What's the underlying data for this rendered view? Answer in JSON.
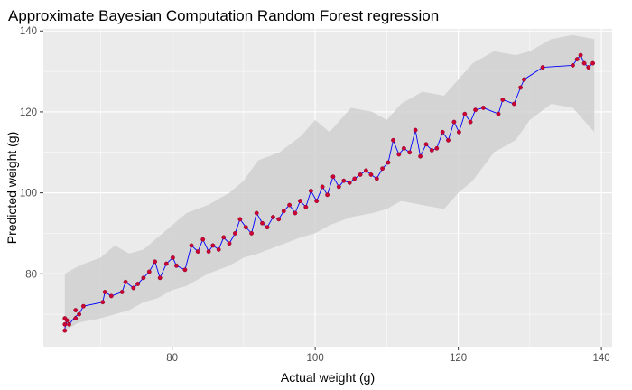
{
  "chart_data": {
    "type": "scatter",
    "title": "Approximate Bayesian Computation Random Forest regression",
    "xlabel": "Actual weight (g)",
    "ylabel": "Predicted weight (g)",
    "xlim": [
      62,
      141.5
    ],
    "ylim": [
      62,
      140.5
    ],
    "x_ticks": [
      80,
      100,
      120,
      140
    ],
    "y_ticks": [
      80,
      100,
      120,
      140
    ],
    "grid": true,
    "legend": "none",
    "series": [
      {
        "type": "ribbon",
        "color": "#cccccc",
        "x": [
          65,
          67,
          70,
          72,
          74,
          76,
          78,
          80,
          82,
          85,
          88,
          90,
          92,
          95,
          98,
          100,
          102,
          105,
          108,
          110,
          112,
          115,
          118,
          120,
          122,
          125,
          128,
          130,
          133,
          136,
          139
        ],
        "lower": [
          66,
          68,
          69,
          70,
          71,
          73,
          74,
          76,
          77,
          80,
          82,
          84,
          85,
          87,
          89,
          90,
          92,
          94,
          95,
          96,
          98,
          97,
          96,
          100,
          103,
          110,
          113,
          118,
          122,
          121,
          115
        ],
        "upper": [
          80,
          82,
          84,
          87,
          85,
          86,
          89,
          92,
          95,
          97,
          100,
          103,
          108,
          110,
          114,
          118,
          115,
          121,
          120,
          118,
          122,
          125,
          124,
          128,
          132,
          135,
          134,
          135,
          138,
          139,
          138
        ]
      },
      {
        "type": "line",
        "color": "#0000ff",
        "x": [
          65,
          65.3,
          65.6,
          66.5,
          67,
          67.6,
          70.3,
          70.6,
          71.5,
          73,
          73.5,
          74.6,
          75.2,
          76,
          76.8,
          77.6,
          78.3,
          79.2,
          80.1,
          80.6,
          81.8,
          82.7,
          83.6,
          84.3,
          85.1,
          85.7,
          86.5,
          87.2,
          88,
          88.8,
          89.5,
          90.3,
          91.1,
          91.8,
          92.6,
          93.3,
          94.1,
          94.9,
          95.6,
          96.4,
          97.2,
          97.9,
          98.7,
          99.4,
          100.2,
          101,
          101.7,
          102.5,
          103.3,
          104,
          104.8,
          105.5,
          106.3,
          107.1,
          107.8,
          108.6,
          109.4,
          110.2,
          110.9,
          111.7,
          112.4,
          113.2,
          114,
          114.7,
          115.5,
          116.3,
          117,
          117.8,
          118.6,
          119.4,
          120.1,
          120.9,
          121.7,
          122.4,
          123.5,
          125.6,
          126.2,
          127.8,
          128.7,
          129.2,
          131.8,
          136,
          136.6,
          137.1,
          137.6,
          138.2,
          138.8
        ],
        "y": [
          66.5,
          68.5,
          67.5,
          69.5,
          70,
          72,
          73,
          75.5,
          74.5,
          75.5,
          78,
          76.5,
          77.5,
          79,
          80.5,
          83,
          79,
          82.5,
          84,
          82,
          81,
          87,
          85.5,
          88.5,
          85.5,
          87,
          86,
          89,
          87.5,
          90,
          93.5,
          91.5,
          90,
          95,
          92.5,
          91.5,
          94,
          93.5,
          95.5,
          97,
          95,
          98,
          96.5,
          100.5,
          98,
          101.5,
          99.5,
          104,
          101.5,
          103,
          102.5,
          103.5,
          104.5,
          105.5,
          104.5,
          103.5,
          106,
          107.5,
          113,
          109.5,
          111,
          110,
          115.5,
          109,
          112,
          110.5,
          111,
          115,
          113,
          117.5,
          115,
          119.5,
          117.5,
          120.5,
          121,
          119.5,
          123,
          122,
          126,
          128,
          131,
          131.5,
          133,
          134,
          132,
          131,
          132
        ]
      },
      {
        "type": "points",
        "color": "#cc0033",
        "x": [
          65,
          65,
          65,
          65.3,
          65.6,
          66.5,
          66.5,
          67,
          67.6,
          70.3,
          70.6,
          71.5,
          73,
          73.5,
          74.6,
          75.2,
          76,
          76.8,
          77.6,
          78.3,
          79.2,
          80.1,
          80.6,
          81.8,
          82.7,
          83.6,
          84.3,
          85.1,
          85.7,
          86.5,
          87.2,
          88,
          88.8,
          89.5,
          90.3,
          91.1,
          91.8,
          92.6,
          93.3,
          94.1,
          94.9,
          95.6,
          96.4,
          97.2,
          97.9,
          98.7,
          99.4,
          100.2,
          101,
          101.7,
          102.5,
          103.3,
          104,
          104.8,
          105.5,
          106.3,
          107.1,
          107.8,
          108.6,
          109.4,
          110.2,
          110.9,
          111.7,
          112.4,
          113.2,
          114,
          114.7,
          115.5,
          116.3,
          117,
          117.8,
          118.6,
          119.4,
          120.1,
          120.9,
          121.7,
          122.4,
          123.5,
          125.6,
          126.2,
          127.8,
          128.7,
          129.2,
          131.8,
          136,
          136.6,
          137.1,
          137.6,
          138.2,
          138.8
        ],
        "y": [
          66,
          67.5,
          69,
          68.5,
          67.5,
          69,
          71,
          70,
          72,
          73,
          75.5,
          74.5,
          75.5,
          78,
          76.5,
          77.5,
          79,
          80.5,
          83,
          79,
          82.5,
          84,
          82,
          81,
          87,
          85.5,
          88.5,
          85.5,
          87,
          86,
          89,
          87.5,
          90,
          93.5,
          91.5,
          90,
          95,
          92.5,
          91.5,
          94,
          93.5,
          95.5,
          97,
          95,
          98,
          96.5,
          100.5,
          98,
          101.5,
          99.5,
          104,
          101.5,
          103,
          102.5,
          103.5,
          104.5,
          105.5,
          104.5,
          103.5,
          106,
          107.5,
          113,
          109.5,
          111,
          110,
          115.5,
          109,
          112,
          110.5,
          111,
          115,
          113,
          117.5,
          115,
          119.5,
          117.5,
          120.5,
          121,
          119.5,
          123,
          122,
          126,
          128,
          131,
          131.5,
          133,
          134,
          132,
          131,
          132
        ]
      }
    ]
  }
}
